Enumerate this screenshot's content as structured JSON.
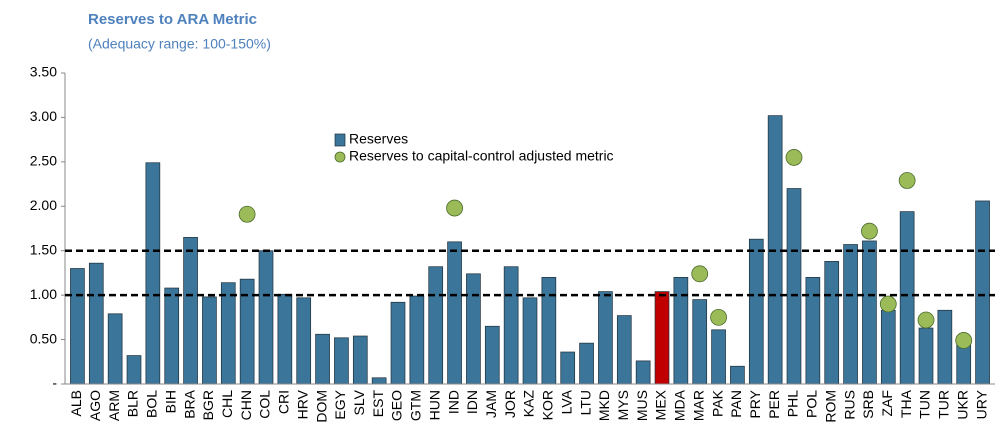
{
  "chart_data": {
    "type": "bar",
    "title": "Reserves to ARA Metric",
    "subtitle": "(Adequacy range: 100-150%)",
    "categories": [
      "ALB",
      "AGO",
      "ARM",
      "BLR",
      "BOL",
      "BIH",
      "BRA",
      "BGR",
      "CHL",
      "CHN",
      "COL",
      "CRI",
      "HRV",
      "DOM",
      "EGY",
      "SLV",
      "EST",
      "GEO",
      "GTM",
      "HUN",
      "IND",
      "IDN",
      "JAM",
      "JOR",
      "KAZ",
      "KOR",
      "LVA",
      "LTU",
      "MKD",
      "MYS",
      "MUS",
      "MEX",
      "MDA",
      "MAR",
      "PAK",
      "PAN",
      "PRY",
      "PER",
      "PHL",
      "POL",
      "ROM",
      "RUS",
      "SRB",
      "ZAF",
      "THA",
      "TUN",
      "TUR",
      "UKR",
      "URY"
    ],
    "series": [
      {
        "name": "Reserves",
        "type": "bar",
        "color": "#3b7599",
        "colors": [
          "#3b7599",
          "#3b7599",
          "#3b7599",
          "#3b7599",
          "#3b7599",
          "#3b7599",
          "#3b7599",
          "#3b7599",
          "#3b7599",
          "#3b7599",
          "#3b7599",
          "#3b7599",
          "#3b7599",
          "#3b7599",
          "#3b7599",
          "#3b7599",
          "#3b7599",
          "#3b7599",
          "#3b7599",
          "#3b7599",
          "#3b7599",
          "#3b7599",
          "#3b7599",
          "#3b7599",
          "#3b7599",
          "#3b7599",
          "#3b7599",
          "#3b7599",
          "#3b7599",
          "#3b7599",
          "#3b7599",
          "#c00000",
          "#3b7599",
          "#3b7599",
          "#3b7599",
          "#3b7599",
          "#3b7599",
          "#3b7599",
          "#3b7599",
          "#3b7599",
          "#3b7599",
          "#3b7599",
          "#3b7599",
          "#3b7599",
          "#3b7599",
          "#3b7599",
          "#3b7599",
          "#3b7599",
          "#3b7599"
        ],
        "values": [
          1.3,
          1.36,
          0.79,
          0.32,
          2.49,
          1.08,
          1.65,
          0.98,
          1.14,
          1.18,
          1.5,
          1.01,
          0.97,
          0.56,
          0.52,
          0.54,
          0.07,
          0.92,
          0.99,
          1.32,
          1.6,
          1.24,
          0.65,
          1.32,
          0.97,
          1.2,
          0.36,
          0.46,
          1.04,
          0.77,
          0.26,
          1.04,
          1.2,
          0.95,
          0.61,
          0.2,
          1.63,
          3.02,
          2.2,
          1.2,
          1.38,
          1.57,
          1.61,
          0.83,
          1.94,
          0.63,
          0.83,
          0.52,
          2.06
        ]
      },
      {
        "name": "Reserves to capital-control adjusted metric",
        "type": "scatter",
        "color": "#9bbb59",
        "values": [
          null,
          null,
          null,
          null,
          null,
          null,
          null,
          null,
          null,
          1.91,
          null,
          null,
          null,
          null,
          null,
          null,
          null,
          null,
          null,
          null,
          1.98,
          null,
          null,
          null,
          null,
          null,
          null,
          null,
          null,
          null,
          null,
          null,
          null,
          1.24,
          0.75,
          null,
          null,
          null,
          2.55,
          null,
          null,
          null,
          1.72,
          0.9,
          2.29,
          0.72,
          null,
          0.49,
          null
        ]
      }
    ],
    "ylim": [
      0,
      3.5
    ],
    "yticks": [
      {
        "value": 0,
        "label": "-"
      },
      {
        "value": 0.5,
        "label": "0.50"
      },
      {
        "value": 1,
        "label": "1.00"
      },
      {
        "value": 1.5,
        "label": "1.50"
      },
      {
        "value": 2,
        "label": "2.00"
      },
      {
        "value": 2.5,
        "label": "2.50"
      },
      {
        "value": 3,
        "label": "3.00"
      },
      {
        "value": 3.5,
        "label": "3.50"
      }
    ],
    "reference_lines": [
      1,
      1.5
    ],
    "legend": "top-center",
    "grid": false
  }
}
